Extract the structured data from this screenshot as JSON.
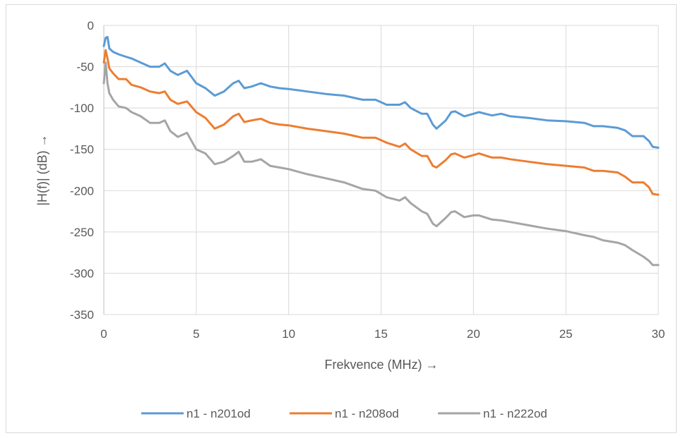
{
  "chart_data": {
    "type": "line",
    "title": "",
    "xlabel": "Frekvence (MHz) →",
    "ylabel": "|H(f)| (dB) →",
    "xlim": [
      0,
      30
    ],
    "ylim": [
      -350,
      0
    ],
    "x_ticks": [
      0,
      5,
      10,
      15,
      20,
      25,
      30
    ],
    "y_ticks": [
      0,
      -50,
      -100,
      -150,
      -200,
      -250,
      -300,
      -350
    ],
    "grid": true,
    "legend_position": "bottom",
    "series": [
      {
        "name": "n1 - n201od",
        "color": "#5b9bd5",
        "points": [
          [
            0,
            -25
          ],
          [
            0.1,
            -15
          ],
          [
            0.2,
            -14
          ],
          [
            0.3,
            -28
          ],
          [
            0.5,
            -32
          ],
          [
            0.8,
            -35
          ],
          [
            1.2,
            -38
          ],
          [
            1.5,
            -40
          ],
          [
            2.0,
            -45
          ],
          [
            2.5,
            -50
          ],
          [
            3.0,
            -50
          ],
          [
            3.3,
            -46
          ],
          [
            3.6,
            -55
          ],
          [
            4.0,
            -60
          ],
          [
            4.5,
            -55
          ],
          [
            5.0,
            -70
          ],
          [
            5.5,
            -76
          ],
          [
            6.0,
            -85
          ],
          [
            6.5,
            -80
          ],
          [
            7.0,
            -70
          ],
          [
            7.3,
            -67
          ],
          [
            7.6,
            -76
          ],
          [
            8.0,
            -74
          ],
          [
            8.5,
            -70
          ],
          [
            9.0,
            -74
          ],
          [
            9.5,
            -76
          ],
          [
            10.0,
            -77
          ],
          [
            11,
            -80
          ],
          [
            12,
            -83
          ],
          [
            13,
            -85
          ],
          [
            14,
            -90
          ],
          [
            14.7,
            -90
          ],
          [
            15.3,
            -96
          ],
          [
            16.0,
            -96
          ],
          [
            16.3,
            -93
          ],
          [
            16.6,
            -100
          ],
          [
            17.2,
            -107
          ],
          [
            17.5,
            -107
          ],
          [
            17.8,
            -120
          ],
          [
            18.0,
            -125
          ],
          [
            18.5,
            -115
          ],
          [
            18.8,
            -105
          ],
          [
            19.0,
            -104
          ],
          [
            19.5,
            -110
          ],
          [
            20.0,
            -107
          ],
          [
            20.3,
            -105
          ],
          [
            21,
            -109
          ],
          [
            21.5,
            -107
          ],
          [
            22,
            -110
          ],
          [
            23,
            -112
          ],
          [
            24,
            -115
          ],
          [
            25,
            -116
          ],
          [
            26,
            -118
          ],
          [
            26.5,
            -122
          ],
          [
            27,
            -122
          ],
          [
            27.8,
            -124
          ],
          [
            28.2,
            -127
          ],
          [
            28.6,
            -134
          ],
          [
            29.2,
            -134
          ],
          [
            29.5,
            -140
          ],
          [
            29.7,
            -147
          ],
          [
            30,
            -148
          ]
        ]
      },
      {
        "name": "n1 - n208od",
        "color": "#ed7d31",
        "points": [
          [
            0,
            -45
          ],
          [
            0.1,
            -30
          ],
          [
            0.2,
            -40
          ],
          [
            0.3,
            -52
          ],
          [
            0.5,
            -58
          ],
          [
            0.8,
            -65
          ],
          [
            1.2,
            -65
          ],
          [
            1.5,
            -72
          ],
          [
            2.0,
            -75
          ],
          [
            2.5,
            -80
          ],
          [
            3.0,
            -82
          ],
          [
            3.3,
            -80
          ],
          [
            3.6,
            -90
          ],
          [
            4.0,
            -95
          ],
          [
            4.5,
            -92
          ],
          [
            5.0,
            -105
          ],
          [
            5.5,
            -112
          ],
          [
            6.0,
            -125
          ],
          [
            6.5,
            -120
          ],
          [
            7.0,
            -110
          ],
          [
            7.3,
            -107
          ],
          [
            7.6,
            -117
          ],
          [
            8.0,
            -115
          ],
          [
            8.5,
            -113
          ],
          [
            9.0,
            -118
          ],
          [
            9.5,
            -120
          ],
          [
            10.0,
            -121
          ],
          [
            11,
            -125
          ],
          [
            12,
            -128
          ],
          [
            13,
            -131
          ],
          [
            14,
            -136
          ],
          [
            14.7,
            -136
          ],
          [
            15.3,
            -142
          ],
          [
            16.0,
            -147
          ],
          [
            16.3,
            -143
          ],
          [
            16.6,
            -150
          ],
          [
            17.2,
            -158
          ],
          [
            17.5,
            -158
          ],
          [
            17.8,
            -170
          ],
          [
            18.0,
            -172
          ],
          [
            18.5,
            -163
          ],
          [
            18.8,
            -156
          ],
          [
            19.0,
            -155
          ],
          [
            19.5,
            -160
          ],
          [
            20.0,
            -157
          ],
          [
            20.3,
            -155
          ],
          [
            21,
            -160
          ],
          [
            21.5,
            -160
          ],
          [
            22,
            -162
          ],
          [
            23,
            -165
          ],
          [
            24,
            -168
          ],
          [
            25,
            -170
          ],
          [
            26,
            -172
          ],
          [
            26.5,
            -176
          ],
          [
            27,
            -176
          ],
          [
            27.8,
            -178
          ],
          [
            28.2,
            -183
          ],
          [
            28.6,
            -190
          ],
          [
            29.2,
            -190
          ],
          [
            29.5,
            -196
          ],
          [
            29.7,
            -204
          ],
          [
            30,
            -205
          ]
        ]
      },
      {
        "name": "n1 - n222od",
        "color": "#a5a5a5",
        "points": [
          [
            0,
            -70
          ],
          [
            0.1,
            -45
          ],
          [
            0.2,
            -70
          ],
          [
            0.3,
            -82
          ],
          [
            0.5,
            -90
          ],
          [
            0.8,
            -98
          ],
          [
            1.2,
            -100
          ],
          [
            1.5,
            -105
          ],
          [
            2.0,
            -110
          ],
          [
            2.5,
            -118
          ],
          [
            3.0,
            -118
          ],
          [
            3.3,
            -115
          ],
          [
            3.6,
            -128
          ],
          [
            4.0,
            -135
          ],
          [
            4.5,
            -130
          ],
          [
            5.0,
            -150
          ],
          [
            5.5,
            -155
          ],
          [
            6.0,
            -168
          ],
          [
            6.5,
            -165
          ],
          [
            7.0,
            -158
          ],
          [
            7.3,
            -153
          ],
          [
            7.6,
            -165
          ],
          [
            8.0,
            -165
          ],
          [
            8.5,
            -162
          ],
          [
            9.0,
            -170
          ],
          [
            9.5,
            -172
          ],
          [
            10.0,
            -174
          ],
          [
            11,
            -180
          ],
          [
            12,
            -185
          ],
          [
            13,
            -190
          ],
          [
            14,
            -198
          ],
          [
            14.7,
            -200
          ],
          [
            15.3,
            -208
          ],
          [
            16.0,
            -212
          ],
          [
            16.3,
            -208
          ],
          [
            16.6,
            -215
          ],
          [
            17.2,
            -225
          ],
          [
            17.5,
            -228
          ],
          [
            17.8,
            -240
          ],
          [
            18.0,
            -243
          ],
          [
            18.5,
            -233
          ],
          [
            18.8,
            -226
          ],
          [
            19.0,
            -225
          ],
          [
            19.5,
            -232
          ],
          [
            20.0,
            -230
          ],
          [
            20.3,
            -230
          ],
          [
            21,
            -235
          ],
          [
            21.5,
            -236
          ],
          [
            22,
            -238
          ],
          [
            23,
            -242
          ],
          [
            24,
            -246
          ],
          [
            25,
            -249
          ],
          [
            26,
            -254
          ],
          [
            26.5,
            -256
          ],
          [
            27,
            -260
          ],
          [
            27.8,
            -263
          ],
          [
            28.2,
            -266
          ],
          [
            28.6,
            -272
          ],
          [
            29.2,
            -280
          ],
          [
            29.5,
            -285
          ],
          [
            29.7,
            -290
          ],
          [
            30,
            -290
          ]
        ]
      }
    ]
  }
}
